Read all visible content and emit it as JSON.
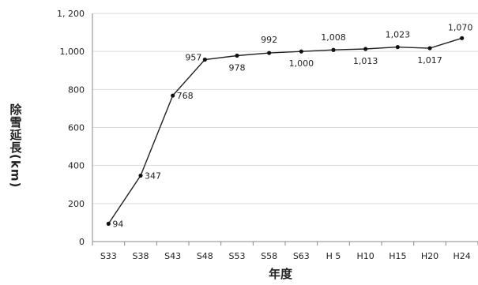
{
  "chart_data": {
    "type": "line",
    "title": "",
    "xlabel": "年度",
    "ylabel": "除雪延長(km)",
    "categories": [
      "S33",
      "S38",
      "S43",
      "S48",
      "S53",
      "S58",
      "S63",
      "H 5",
      "H10",
      "H15",
      "H20",
      "H24"
    ],
    "series": [
      {
        "values": [
          94,
          347,
          768,
          957,
          978,
          992,
          1000,
          1008,
          1013,
          1023,
          1017,
          1070
        ]
      }
    ],
    "data_labels": [
      "94",
      "347",
      "768",
      "957",
      "978",
      "992",
      "1,000",
      "1,008",
      "1,013",
      "1,023",
      "1,017",
      "1,070"
    ],
    "ylim": [
      0,
      1200
    ],
    "yticks": [
      0,
      200,
      400,
      600,
      800,
      1000,
      1200
    ],
    "ytick_labels": [
      "0",
      "200",
      "400",
      "600",
      "800",
      "1,000",
      "1, 200"
    ],
    "grid": true,
    "colors": {
      "line": "#222222",
      "marker": "#111111",
      "grid": "#d9d9d9",
      "axis": "#888888"
    }
  }
}
